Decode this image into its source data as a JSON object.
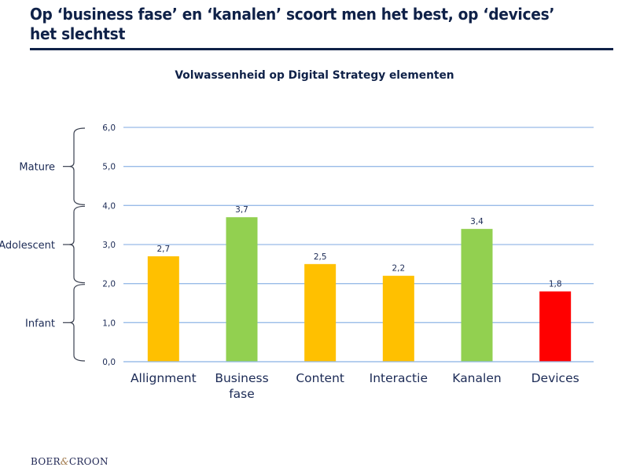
{
  "slide": {
    "title": "Op ‘business fase’ en ‘kanalen’ scoort men het best, op ‘devices’ het slechtst",
    "logo": {
      "left": "BOER",
      "amp": "&",
      "right": "CROON"
    }
  },
  "colors": {
    "title": "#0f2148",
    "gridline": "#99bbe8",
    "orange": "#ffc000",
    "green": "#92d050",
    "red": "#ff0000",
    "brace": "#3a4050"
  },
  "chart_data": {
    "type": "bar",
    "title": "Volwassenheid op Digital Strategy elementen",
    "xlabel": "",
    "ylabel": "",
    "ylim": [
      0,
      6
    ],
    "grid": true,
    "legend": "none",
    "yticks": [
      "0,0",
      "1,0",
      "2,0",
      "3,0",
      "4,0",
      "5,0",
      "6,0"
    ],
    "categories": [
      "Allignment",
      "Business fase",
      "Content",
      "Interactie",
      "Kanalen",
      "Devices"
    ],
    "category_lines": [
      [
        "Allignment"
      ],
      [
        "Business",
        "fase"
      ],
      [
        "Content"
      ],
      [
        "Interactie"
      ],
      [
        "Kanalen"
      ],
      [
        "Devices"
      ]
    ],
    "values": [
      2.7,
      3.7,
      2.5,
      2.2,
      3.4,
      1.8
    ],
    "data_labels": [
      "2,7",
      "3,7",
      "2,5",
      "2,2",
      "3,4",
      "1,8"
    ],
    "bar_colors": [
      "#ffc000",
      "#92d050",
      "#ffc000",
      "#ffc000",
      "#92d050",
      "#ff0000"
    ],
    "maturity_bands": [
      {
        "label": "Infant",
        "from": 0,
        "to": 2
      },
      {
        "label": "Adolescent",
        "from": 2,
        "to": 4
      },
      {
        "label": "Mature",
        "from": 4,
        "to": 6
      }
    ]
  }
}
